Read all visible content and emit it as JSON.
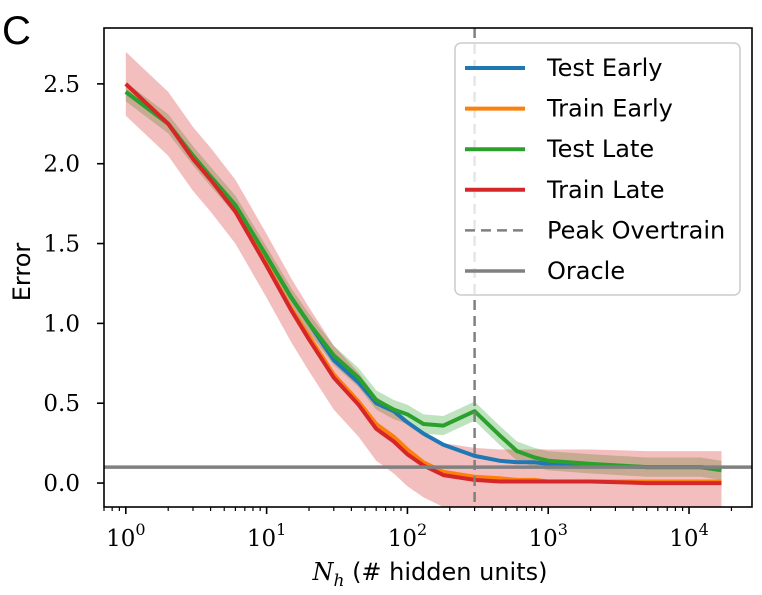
{
  "panel_label": "C",
  "chart_data": {
    "type": "line",
    "xscale": "log",
    "xlabel": "N_h (# hidden units)",
    "xlabel_parts": {
      "symbol": "N",
      "subscript": "h",
      "rest": " (# hidden units)"
    },
    "ylabel": "Error",
    "xlim": [
      0.7,
      28000
    ],
    "ylim": [
      -0.15,
      2.85
    ],
    "x_ticks": [
      {
        "value": 1,
        "base": "10",
        "exp": "0"
      },
      {
        "value": 10,
        "base": "10",
        "exp": "1"
      },
      {
        "value": 100,
        "base": "10",
        "exp": "2"
      },
      {
        "value": 1000,
        "base": "10",
        "exp": "3"
      },
      {
        "value": 10000,
        "base": "10",
        "exp": "4"
      }
    ],
    "y_ticks": [
      {
        "value": 0.0,
        "label": "0.0"
      },
      {
        "value": 0.5,
        "label": "0.5"
      },
      {
        "value": 1.0,
        "label": "1.0"
      },
      {
        "value": 1.5,
        "label": "1.5"
      },
      {
        "value": 2.0,
        "label": "2.0"
      },
      {
        "value": 2.5,
        "label": "2.5"
      }
    ],
    "grid": false,
    "legend_position": "top-right",
    "series": [
      {
        "name": "Test Early",
        "color": "#1f77b4",
        "style": "solid",
        "x": [
          1,
          2,
          3,
          4,
          6,
          10,
          15,
          20,
          30,
          45,
          60,
          80,
          100,
          130,
          180,
          300,
          450,
          600,
          800,
          1000,
          2000,
          5000,
          12000,
          17000
        ],
        "y": [
          2.45,
          2.25,
          2.05,
          1.92,
          1.74,
          1.42,
          1.16,
          1.0,
          0.77,
          0.63,
          0.5,
          0.45,
          0.38,
          0.31,
          0.24,
          0.17,
          0.14,
          0.13,
          0.13,
          0.12,
          0.11,
          0.1,
          0.1,
          0.09
        ],
        "band": 0.05
      },
      {
        "name": "Train Early",
        "color": "#ff7f0e",
        "style": "solid",
        "x": [
          1,
          2,
          3,
          4,
          6,
          10,
          15,
          20,
          30,
          45,
          60,
          80,
          100,
          130,
          180,
          300,
          450,
          600,
          800,
          1000,
          2000,
          5000,
          12000,
          17000
        ],
        "y": [
          2.5,
          2.25,
          2.05,
          1.92,
          1.7,
          1.37,
          1.09,
          0.92,
          0.68,
          0.51,
          0.37,
          0.29,
          0.21,
          0.13,
          0.07,
          0.04,
          0.03,
          0.02,
          0.02,
          0.01,
          0.01,
          0.01,
          0.01,
          0.01
        ],
        "band": 0.05
      },
      {
        "name": "Test Late",
        "color": "#2ca02c",
        "style": "solid",
        "x": [
          1,
          2,
          3,
          4,
          6,
          10,
          15,
          20,
          30,
          45,
          60,
          80,
          100,
          130,
          180,
          300,
          450,
          600,
          800,
          1000,
          2000,
          5000,
          12000,
          17000
        ],
        "y": [
          2.45,
          2.25,
          2.05,
          1.92,
          1.74,
          1.42,
          1.16,
          1.0,
          0.8,
          0.66,
          0.52,
          0.46,
          0.43,
          0.37,
          0.36,
          0.45,
          0.3,
          0.2,
          0.16,
          0.14,
          0.12,
          0.1,
          0.1,
          0.08
        ],
        "band": 0.06
      },
      {
        "name": "Train Late",
        "color": "#d62728",
        "style": "solid",
        "x": [
          1,
          2,
          3,
          4,
          6,
          10,
          15,
          20,
          30,
          45,
          60,
          80,
          100,
          130,
          180,
          300,
          450,
          600,
          800,
          1000,
          2000,
          5000,
          12000,
          17000
        ],
        "y": [
          2.5,
          2.25,
          2.03,
          1.9,
          1.7,
          1.36,
          1.08,
          0.9,
          0.66,
          0.49,
          0.34,
          0.26,
          0.18,
          0.11,
          0.05,
          0.02,
          0.01,
          0.01,
          0.01,
          0.01,
          0.01,
          0.0,
          0.0,
          0.0
        ],
        "band": 0.2
      },
      {
        "name": "Peak Overtrain",
        "color": "#808080",
        "style": "dashed",
        "vline": 300
      },
      {
        "name": "Oracle",
        "color": "#808080",
        "style": "solid",
        "hline": 0.1
      }
    ],
    "band_colors": [
      "#d62728",
      "#2ca02c"
    ]
  }
}
